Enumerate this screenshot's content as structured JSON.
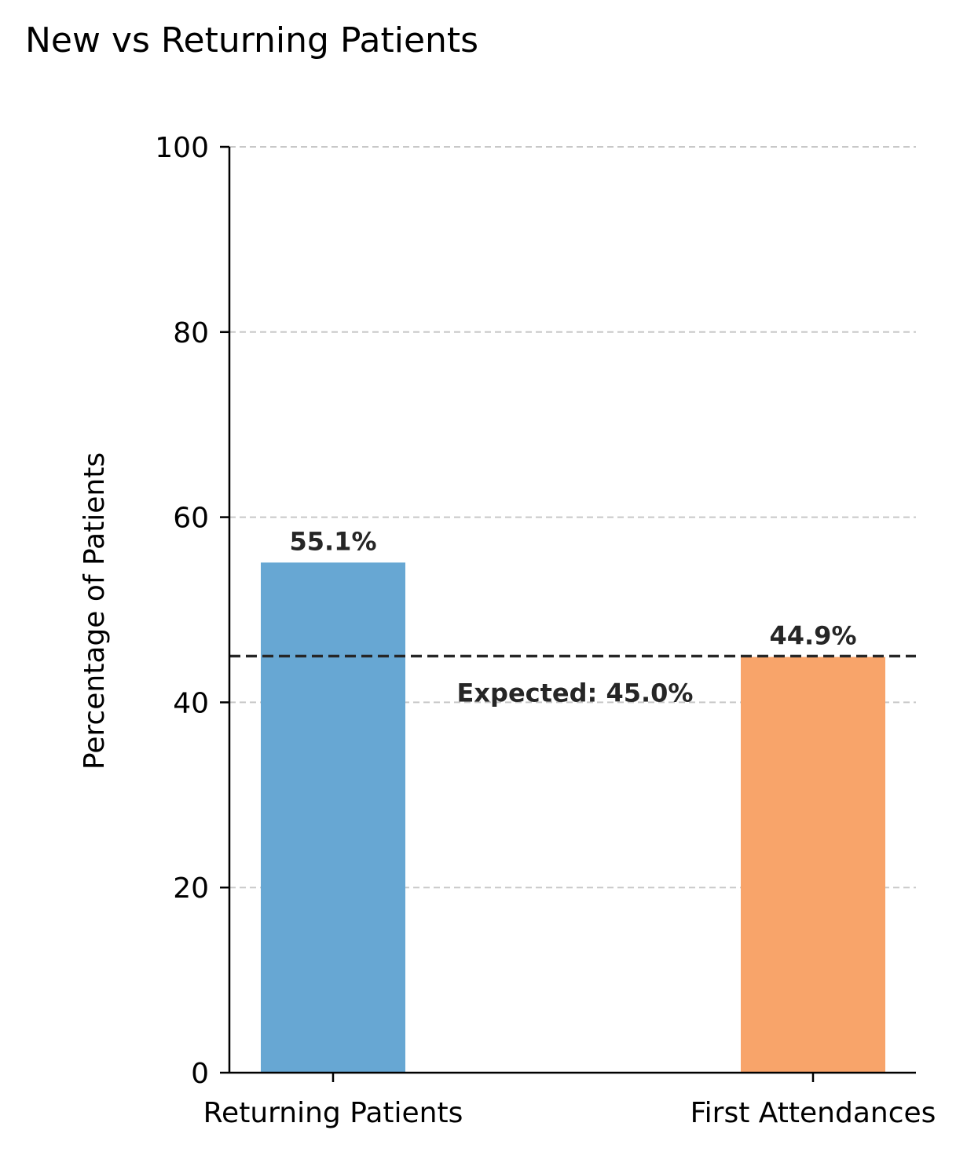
{
  "chart_data": {
    "type": "bar",
    "title": "New vs Returning Patients",
    "xlabel": "",
    "ylabel": "Percentage of Patients",
    "ylim": [
      0,
      100
    ],
    "yticks": [
      0,
      20,
      40,
      60,
      80,
      100
    ],
    "grid": "y-dashed",
    "categories": [
      "Returning Patients",
      "First Attendances"
    ],
    "values": [
      55.1,
      44.9
    ],
    "value_labels": [
      "55.1%",
      "44.9%"
    ],
    "colors": [
      "#67a7d3",
      "#f8a46a"
    ],
    "reference_line": {
      "value": 45.0,
      "label": "Expected: 45.0%",
      "color": "#262626"
    }
  }
}
